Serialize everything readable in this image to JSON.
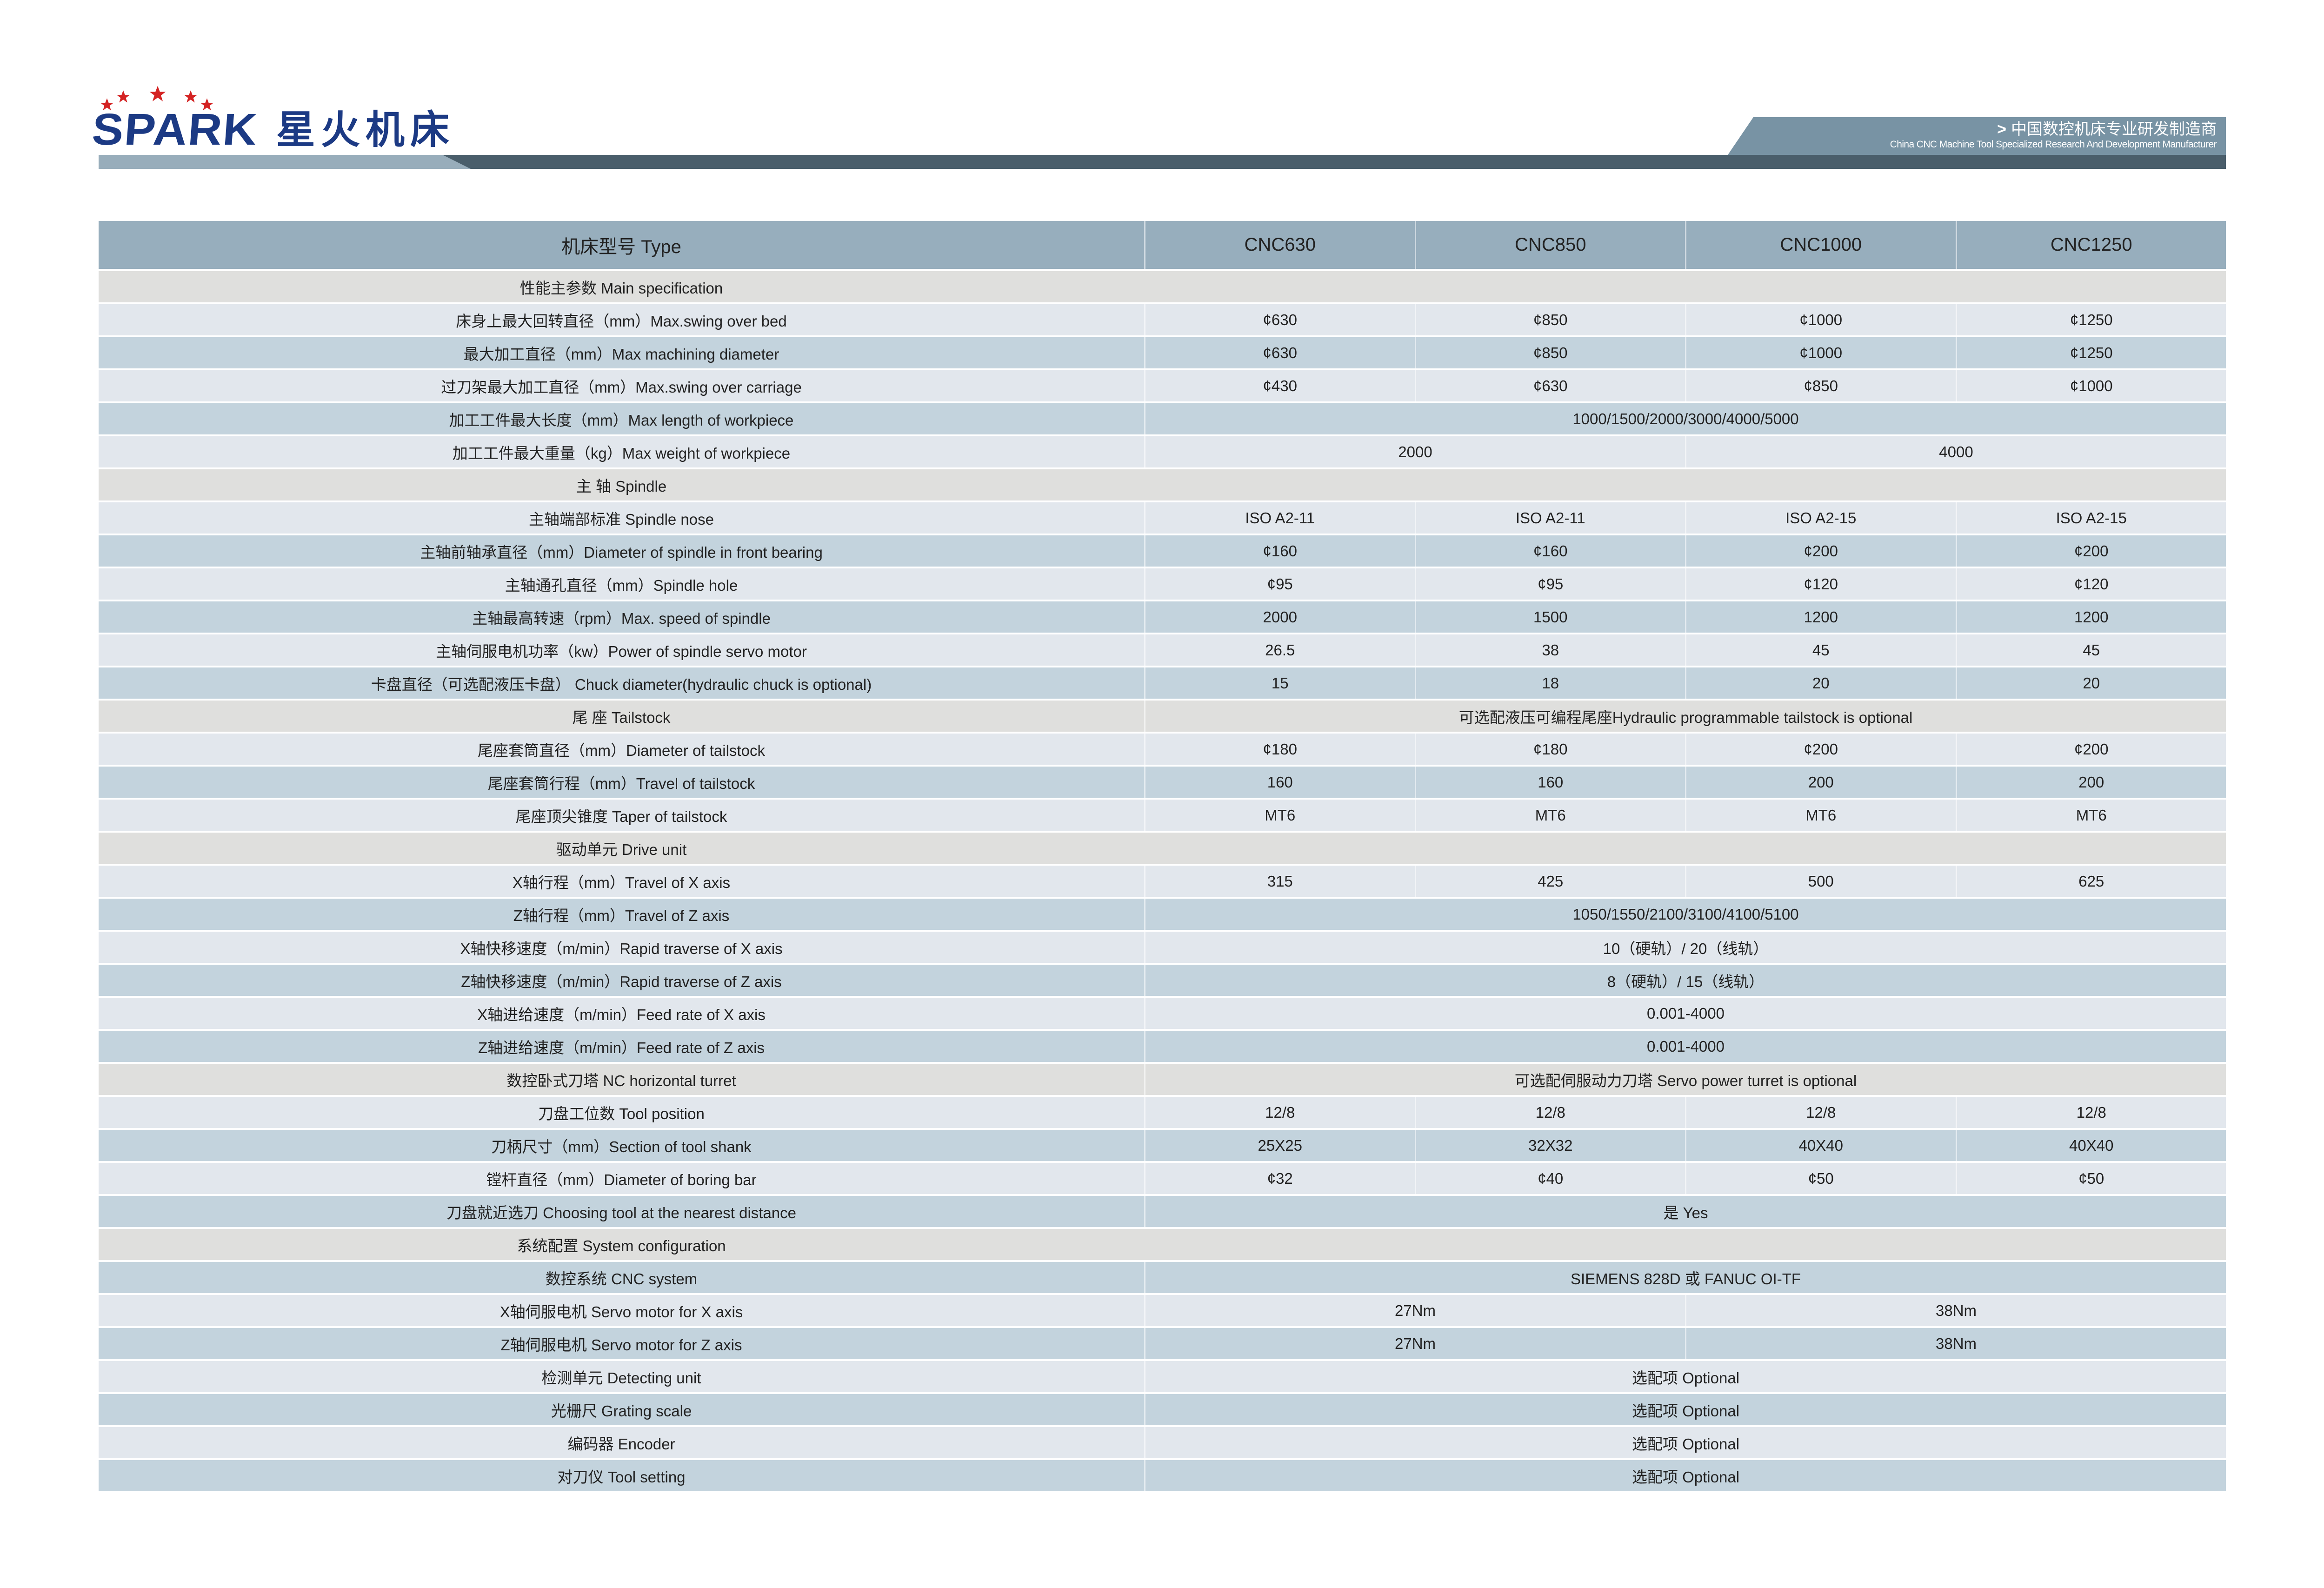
{
  "header": {
    "logo_en": "SPARK",
    "logo_cn": "星火机床",
    "tagline_cn": "中国数控机床专业研发制造商",
    "tagline_en": "China CNC Machine Tool Specialized Research And Development Manufacturer",
    "tagline_icon": "chevron-right-icon"
  },
  "table": {
    "header": {
      "label": "机床型号 Type",
      "models": [
        "CNC630",
        "CNC850",
        "CNC1000",
        "CNC1250"
      ]
    },
    "rows": [
      {
        "type": "section",
        "label": "性能主参数 Main specification"
      },
      {
        "type": "spec",
        "tone": "light",
        "label": "床身上最大回转直径（mm）Max.swing over bed",
        "cells": [
          {
            "text": "¢630",
            "span": 1
          },
          {
            "text": "¢850",
            "span": 1
          },
          {
            "text": "¢1000",
            "span": 1
          },
          {
            "text": "¢1250",
            "span": 1
          }
        ]
      },
      {
        "type": "spec",
        "tone": "blue",
        "label": "最大加工直径（mm）Max machining diameter",
        "cells": [
          {
            "text": "¢630",
            "span": 1
          },
          {
            "text": "¢850",
            "span": 1
          },
          {
            "text": "¢1000",
            "span": 1
          },
          {
            "text": "¢1250",
            "span": 1
          }
        ]
      },
      {
        "type": "spec",
        "tone": "light",
        "label": "过刀架最大加工直径（mm）Max.swing over carriage",
        "cells": [
          {
            "text": "¢430",
            "span": 1
          },
          {
            "text": "¢630",
            "span": 1
          },
          {
            "text": "¢850",
            "span": 1
          },
          {
            "text": "¢1000",
            "span": 1
          }
        ]
      },
      {
        "type": "spec",
        "tone": "blue",
        "label": "加工工件最大长度（mm）Max length of workpiece",
        "cells": [
          {
            "text": "1000/1500/2000/3000/4000/5000",
            "span": 4
          }
        ]
      },
      {
        "type": "spec",
        "tone": "light",
        "label": "加工工件最大重量（kg）Max weight of workpiece",
        "cells": [
          {
            "text": "2000",
            "span": 2
          },
          {
            "text": "4000",
            "span": 2
          }
        ]
      },
      {
        "type": "section",
        "label": "主  轴 Spindle"
      },
      {
        "type": "spec",
        "tone": "light",
        "label": "主轴端部标准 Spindle nose",
        "cells": [
          {
            "text": "ISO A2-11",
            "span": 1
          },
          {
            "text": "ISO A2-11",
            "span": 1
          },
          {
            "text": "ISO A2-15",
            "span": 1
          },
          {
            "text": "ISO A2-15",
            "span": 1
          }
        ]
      },
      {
        "type": "spec",
        "tone": "blue",
        "label": "主轴前轴承直径（mm）Diameter of spindle in front bearing",
        "cells": [
          {
            "text": "¢160",
            "span": 1
          },
          {
            "text": "¢160",
            "span": 1
          },
          {
            "text": "¢200",
            "span": 1
          },
          {
            "text": "¢200",
            "span": 1
          }
        ]
      },
      {
        "type": "spec",
        "tone": "light",
        "label": "主轴通孔直径（mm）Spindle hole",
        "cells": [
          {
            "text": "¢95",
            "span": 1
          },
          {
            "text": "¢95",
            "span": 1
          },
          {
            "text": "¢120",
            "span": 1
          },
          {
            "text": "¢120",
            "span": 1
          }
        ]
      },
      {
        "type": "spec",
        "tone": "blue",
        "label": "主轴最高转速（rpm）Max. speed of spindle",
        "cells": [
          {
            "text": "2000",
            "span": 1
          },
          {
            "text": "1500",
            "span": 1
          },
          {
            "text": "1200",
            "span": 1
          },
          {
            "text": "1200",
            "span": 1
          }
        ]
      },
      {
        "type": "spec",
        "tone": "light",
        "label": "主轴伺服电机功率（kw）Power of spindle servo motor",
        "cells": [
          {
            "text": "26.5",
            "span": 1
          },
          {
            "text": "38",
            "span": 1
          },
          {
            "text": "45",
            "span": 1
          },
          {
            "text": "45",
            "span": 1
          }
        ]
      },
      {
        "type": "spec",
        "tone": "blue",
        "label": "卡盘直径（可选配液压卡盘） Chuck diameter(hydraulic chuck is optional)",
        "cells": [
          {
            "text": "15",
            "span": 1
          },
          {
            "text": "18",
            "span": 1
          },
          {
            "text": "20",
            "span": 1
          },
          {
            "text": "20",
            "span": 1
          }
        ]
      },
      {
        "type": "section",
        "label": "尾  座 Tailstock",
        "cells": [
          {
            "text": "可选配液压可编程尾座Hydraulic programmable tailstock is optional",
            "span": 4
          }
        ]
      },
      {
        "type": "spec",
        "tone": "light",
        "label": "尾座套筒直径（mm）Diameter of tailstock",
        "cells": [
          {
            "text": "¢180",
            "span": 1
          },
          {
            "text": "¢180",
            "span": 1
          },
          {
            "text": "¢200",
            "span": 1
          },
          {
            "text": "¢200",
            "span": 1
          }
        ]
      },
      {
        "type": "spec",
        "tone": "blue",
        "label": "尾座套筒行程（mm）Travel of tailstock",
        "cells": [
          {
            "text": "160",
            "span": 1
          },
          {
            "text": "160",
            "span": 1
          },
          {
            "text": "200",
            "span": 1
          },
          {
            "text": "200",
            "span": 1
          }
        ]
      },
      {
        "type": "spec",
        "tone": "light",
        "label": "尾座顶尖锥度 Taper of tailstock",
        "cells": [
          {
            "text": "MT6",
            "span": 1
          },
          {
            "text": "MT6",
            "span": 1
          },
          {
            "text": "MT6",
            "span": 1
          },
          {
            "text": "MT6",
            "span": 1
          }
        ]
      },
      {
        "type": "section",
        "label": "驱动单元 Drive unit"
      },
      {
        "type": "spec",
        "tone": "light",
        "label": "X轴行程（mm）Travel of X axis",
        "cells": [
          {
            "text": "315",
            "span": 1
          },
          {
            "text": "425",
            "span": 1
          },
          {
            "text": "500",
            "span": 1
          },
          {
            "text": "625",
            "span": 1
          }
        ]
      },
      {
        "type": "spec",
        "tone": "blue",
        "label": "Z轴行程（mm）Travel of Z axis",
        "cells": [
          {
            "text": "1050/1550/2100/3100/4100/5100",
            "span": 4
          }
        ]
      },
      {
        "type": "spec",
        "tone": "light",
        "label": "X轴快移速度（m/min）Rapid traverse of X axis",
        "cells": [
          {
            "text": "10（硬轨）/ 20（线轨）",
            "span": 4
          }
        ]
      },
      {
        "type": "spec",
        "tone": "blue",
        "label": "Z轴快移速度（m/min）Rapid traverse of Z axis",
        "cells": [
          {
            "text": "8（硬轨）/ 15（线轨）",
            "span": 4
          }
        ]
      },
      {
        "type": "spec",
        "tone": "light",
        "label": "X轴进给速度（m/min）Feed rate of X axis",
        "cells": [
          {
            "text": "0.001-4000",
            "span": 4
          }
        ]
      },
      {
        "type": "spec",
        "tone": "blue",
        "label": "Z轴进给速度（m/min）Feed rate of Z axis",
        "cells": [
          {
            "text": "0.001-4000",
            "span": 4
          }
        ]
      },
      {
        "type": "section",
        "label": "数控卧式刀塔 NC horizontal turret",
        "cells": [
          {
            "text": "可选配伺服动力刀塔 Servo power turret is optional",
            "span": 4
          }
        ]
      },
      {
        "type": "spec",
        "tone": "light",
        "label": "刀盘工位数 Tool position",
        "cells": [
          {
            "text": "12/8",
            "span": 1
          },
          {
            "text": "12/8",
            "span": 1
          },
          {
            "text": "12/8",
            "span": 1
          },
          {
            "text": "12/8",
            "span": 1
          }
        ]
      },
      {
        "type": "spec",
        "tone": "blue",
        "label": "刀柄尺寸（mm）Section of tool shank",
        "cells": [
          {
            "text": "25X25",
            "span": 1
          },
          {
            "text": "32X32",
            "span": 1
          },
          {
            "text": "40X40",
            "span": 1
          },
          {
            "text": "40X40",
            "span": 1
          }
        ]
      },
      {
        "type": "spec",
        "tone": "light",
        "label": "镗杆直径（mm）Diameter of boring bar",
        "cells": [
          {
            "text": "¢32",
            "span": 1
          },
          {
            "text": "¢40",
            "span": 1
          },
          {
            "text": "¢50",
            "span": 1
          },
          {
            "text": "¢50",
            "span": 1
          }
        ]
      },
      {
        "type": "spec",
        "tone": "blue",
        "label": "刀盘就近选刀 Choosing tool at the nearest distance",
        "cells": [
          {
            "text": "是  Yes",
            "span": 4
          }
        ]
      },
      {
        "type": "section",
        "label": "系统配置 System configuration"
      },
      {
        "type": "spec",
        "tone": "blue",
        "label": "数控系统 CNC system",
        "cells": [
          {
            "text": "SIEMENS  828D 或 FANUC OI-TF",
            "span": 4
          }
        ]
      },
      {
        "type": "spec",
        "tone": "light",
        "label": "X轴伺服电机 Servo motor for X axis",
        "cells": [
          {
            "text": "27Nm",
            "span": 2
          },
          {
            "text": "38Nm",
            "span": 2
          }
        ]
      },
      {
        "type": "spec",
        "tone": "blue",
        "label": "Z轴伺服电机 Servo motor for Z axis",
        "cells": [
          {
            "text": "27Nm",
            "span": 2
          },
          {
            "text": "38Nm",
            "span": 2
          }
        ]
      },
      {
        "type": "spec",
        "tone": "light",
        "label": "检测单元 Detecting unit",
        "cells": [
          {
            "text": "选配项 Optional",
            "span": 4
          }
        ]
      },
      {
        "type": "spec",
        "tone": "blue",
        "label": "光栅尺 Grating scale",
        "cells": [
          {
            "text": "选配项 Optional",
            "span": 4
          }
        ]
      },
      {
        "type": "spec",
        "tone": "light",
        "label": "编码器 Encoder",
        "cells": [
          {
            "text": "选配项 Optional",
            "span": 4
          }
        ]
      },
      {
        "type": "spec",
        "tone": "blue",
        "label": "对刀仪 Tool setting",
        "cells": [
          {
            "text": "选配项 Optional",
            "span": 4
          }
        ]
      }
    ]
  }
}
